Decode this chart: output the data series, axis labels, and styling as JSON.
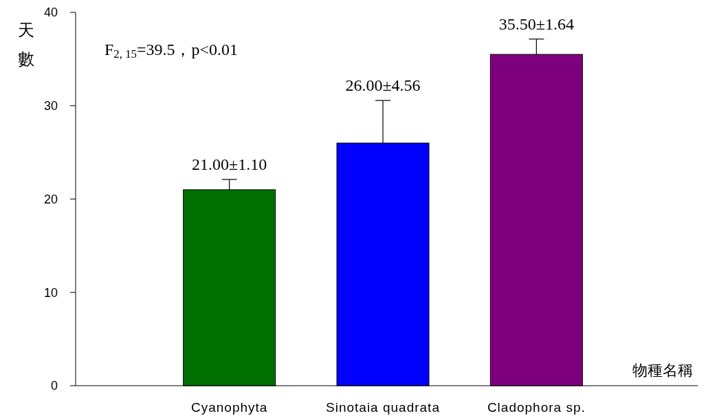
{
  "chart_data": {
    "type": "bar",
    "categories": [
      "Cyanophyta",
      "Sinotaia quadrata",
      "Cladophora sp."
    ],
    "values": [
      21.0,
      26.0,
      35.5
    ],
    "colors": [
      "#007000",
      "#0000ff",
      "#7f007f"
    ],
    "errors": [
      1.1,
      4.56,
      1.64
    ],
    "value_labels": [
      "21.00±1.10",
      "26.00±4.56",
      "35.50±1.64"
    ],
    "ylim": [
      0,
      40
    ],
    "yticks": [
      0,
      10,
      20,
      30,
      40
    ],
    "xlabel": "物種名稱",
    "ylabel": "天數",
    "annotations": [
      "F$_{2, 15}$=39.5，p<0.01"
    ]
  }
}
